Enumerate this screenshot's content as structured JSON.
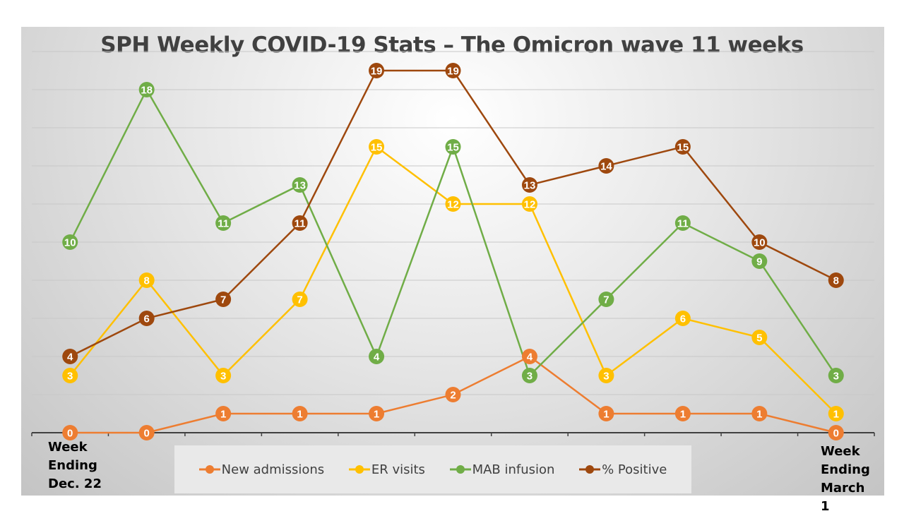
{
  "chart_data": {
    "type": "line",
    "title": "SPH Weekly COVID-19 Stats – The Omicron wave 11 weeks",
    "x_first_label": "Week Ending Dec. 22",
    "x_last_label": "Week Ending March 1",
    "x": [
      1,
      2,
      3,
      4,
      5,
      6,
      7,
      8,
      9,
      10,
      11
    ],
    "ylim": [
      0,
      20
    ],
    "grid": true,
    "data_labels": true,
    "legend_position": "bottom",
    "series": [
      {
        "name": "New admissions",
        "color": "#ED7D31",
        "values": [
          0,
          0,
          1,
          1,
          1,
          2,
          4,
          1,
          1,
          1,
          0
        ]
      },
      {
        "name": "ER visits",
        "color": "#FFC000",
        "values": [
          3,
          8,
          3,
          7,
          15,
          12,
          12,
          3,
          6,
          5,
          1
        ]
      },
      {
        "name": "MAB infusion",
        "color": "#70AD47",
        "values": [
          10,
          18,
          11,
          13,
          4,
          15,
          3,
          7,
          11,
          9,
          3
        ]
      },
      {
        "name": "% Positive",
        "color": "#9E480E",
        "values": [
          4,
          6,
          7,
          11,
          19,
          19,
          13,
          14,
          15,
          10,
          8
        ]
      }
    ]
  }
}
